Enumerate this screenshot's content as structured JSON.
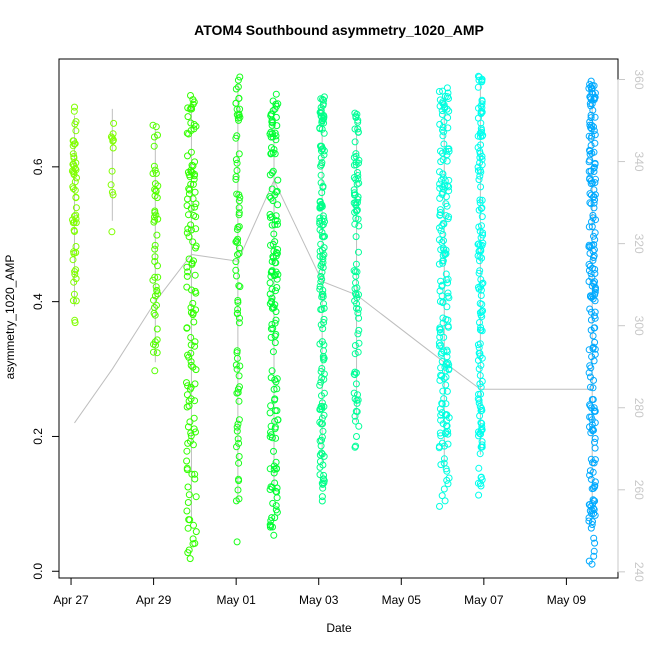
{
  "chart_data": {
    "type": "scatter",
    "title": "ATOM4 Southbound asymmetry_1020_AMP",
    "xlabel": "Date",
    "ylabel": "asymmetry_1020_AMP",
    "x_tick_labels": [
      "Apr 27",
      "Apr 29",
      "May 01",
      "May 03",
      "May 05",
      "May 07",
      "May 09"
    ],
    "x_tick_dates": [
      "2023-04-27",
      "2023-04-29",
      "2023-05-01",
      "2023-05-03",
      "2023-05-05",
      "2023-05-07",
      "2023-05-09"
    ],
    "xlim": [
      "2023-04-26T17:00",
      "2023-05-10T06:00"
    ],
    "ylim": [
      -0.01,
      0.76
    ],
    "y_ticks": [
      0.0,
      0.2,
      0.4,
      0.6
    ],
    "y_tick_labels": [
      "0.0",
      "0.2",
      "0.4",
      "0.6"
    ],
    "right_axis": {
      "ylim": [
        238.5,
        365
      ],
      "ticks": [
        240,
        260,
        280,
        300,
        320,
        340,
        360
      ]
    },
    "grid": false,
    "legend": "none",
    "colors": {
      "points_from": "#7cff00",
      "points_to": "#1e90ff",
      "trace": "#bebebe"
    },
    "clusters": [
      {
        "date": "2023-04-27T02:00",
        "spread_days": 0.05,
        "ymin": 0.36,
        "ymax": 0.69,
        "count": 55,
        "color": "#80ff00"
      },
      {
        "date": "2023-04-28T00:00",
        "spread_days": 0.03,
        "ymin": 0.5,
        "ymax": 0.7,
        "count": 12,
        "color": "#80ff00"
      },
      {
        "date": "2023-04-29T01:00",
        "spread_days": 0.06,
        "ymin": 0.27,
        "ymax": 0.67,
        "count": 50,
        "color": "#55ff00"
      },
      {
        "date": "2023-04-29T22:00",
        "spread_days": 0.12,
        "ymin": 0.01,
        "ymax": 0.71,
        "count": 130,
        "color": "#33ff00"
      },
      {
        "date": "2023-05-01T01:00",
        "spread_days": 0.05,
        "ymin": 0.03,
        "ymax": 0.74,
        "count": 80,
        "color": "#1aff1a"
      },
      {
        "date": "2023-05-01T22:00",
        "spread_days": 0.1,
        "ymin": 0.05,
        "ymax": 0.71,
        "count": 150,
        "color": "#00ff33"
      },
      {
        "date": "2023-05-03T02:00",
        "spread_days": 0.06,
        "ymin": 0.1,
        "ymax": 0.72,
        "count": 150,
        "color": "#00ff88"
      },
      {
        "date": "2023-05-03T22:00",
        "spread_days": 0.06,
        "ymin": 0.17,
        "ymax": 0.68,
        "count": 90,
        "color": "#00ff99"
      },
      {
        "date": "2023-05-06T01:00",
        "spread_days": 0.12,
        "ymin": 0.09,
        "ymax": 0.72,
        "count": 180,
        "color": "#00ffe0"
      },
      {
        "date": "2023-05-06T22:00",
        "spread_days": 0.06,
        "ymin": 0.11,
        "ymax": 0.74,
        "count": 140,
        "color": "#00ffee"
      },
      {
        "date": "2023-05-09T15:00",
        "spread_days": 0.08,
        "ymin": 0.01,
        "ymax": 0.73,
        "count": 200,
        "color": "#00aaff"
      }
    ],
    "trace_points": [
      {
        "date": "2023-04-27T02:00",
        "value": 0.22
      },
      {
        "date": "2023-04-28T00:00",
        "value": 0.3
      },
      {
        "date": "2023-04-29T01:00",
        "value": 0.4
      },
      {
        "date": "2023-04-29T22:00",
        "value": 0.47
      },
      {
        "date": "2023-05-01T01:00",
        "value": 0.46
      },
      {
        "date": "2023-05-01T22:00",
        "value": 0.58
      },
      {
        "date": "2023-05-03T02:00",
        "value": 0.43
      },
      {
        "date": "2023-05-03T22:00",
        "value": 0.41
      },
      {
        "date": "2023-05-06T01:00",
        "value": 0.31
      },
      {
        "date": "2023-05-06T22:00",
        "value": 0.27
      },
      {
        "date": "2023-05-09T15:00",
        "value": 0.27
      }
    ]
  }
}
